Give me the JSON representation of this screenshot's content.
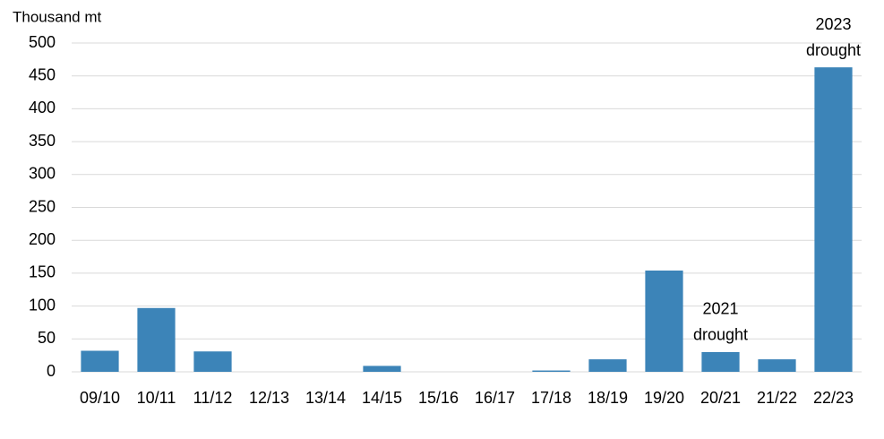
{
  "chart_data": {
    "type": "bar",
    "y_axis_label": "Thousand mt",
    "categories": [
      "09/10",
      "10/11",
      "11/12",
      "12/13",
      "13/14",
      "14/15",
      "15/16",
      "16/17",
      "17/18",
      "18/19",
      "19/20",
      "20/21",
      "21/22",
      "22/23"
    ],
    "values": [
      32,
      97,
      31,
      0,
      0,
      9,
      0,
      0,
      2,
      19,
      154,
      30,
      19,
      463
    ],
    "color": "#3c84b8",
    "ylim": [
      0,
      500
    ],
    "yticks": [
      0,
      50,
      100,
      150,
      200,
      250,
      300,
      350,
      400,
      450,
      500
    ],
    "grid": true,
    "annotations": [
      {
        "category": "20/21",
        "lines": [
          "2021",
          "drought"
        ]
      },
      {
        "category": "22/23",
        "lines": [
          "2023",
          "drought"
        ]
      }
    ]
  }
}
